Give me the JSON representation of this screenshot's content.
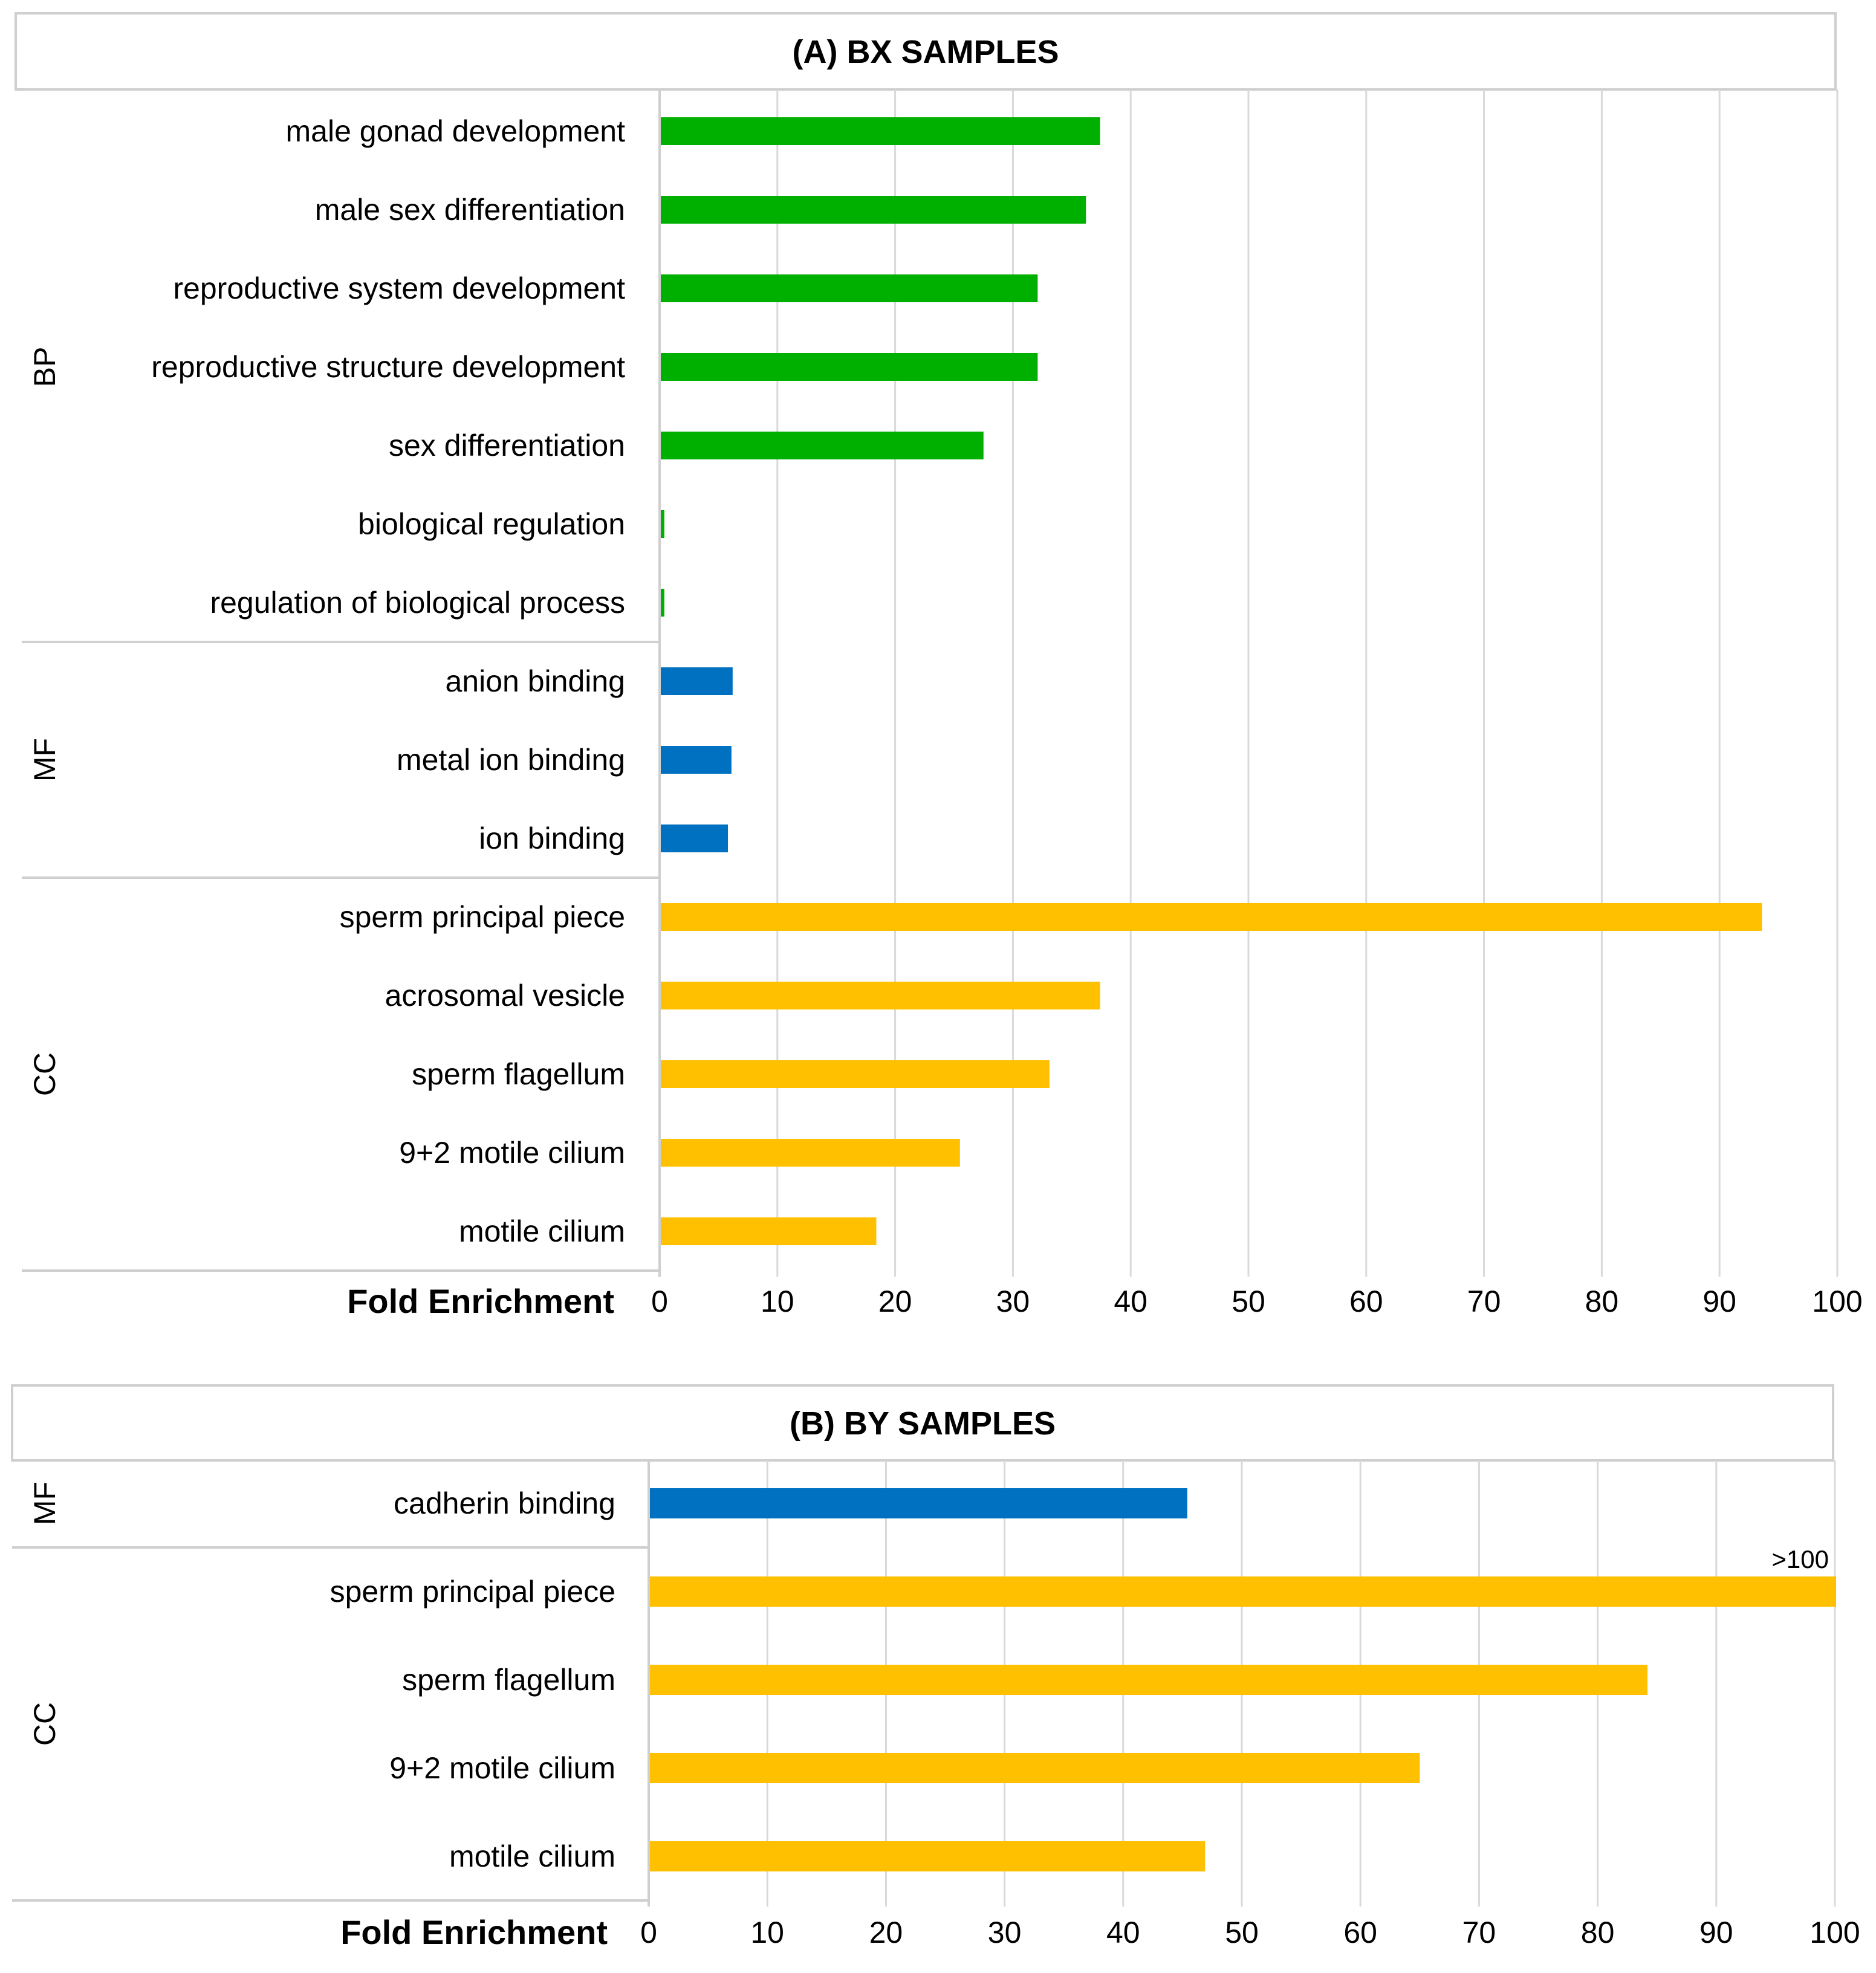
{
  "chart_data": [
    {
      "type": "bar",
      "orientation": "horizontal",
      "title": "(A) BX SAMPLES",
      "xlabel": "Fold Enrichment",
      "xlim": [
        0,
        100
      ],
      "xticks": [
        "0",
        "10",
        "20",
        "30",
        "40",
        "50",
        "60",
        "70",
        "80",
        "90",
        "100"
      ],
      "grid": true,
      "colors": {
        "BP": "#00b000",
        "MF": "#0070c0",
        "CC": "#ffc000"
      },
      "groups": [
        {
          "name": "BP",
          "bars": [
            {
              "label": "male gonad development",
              "value": 37.3
            },
            {
              "label": "male sex differentiation",
              "value": 36.1
            },
            {
              "label": "reproductive system development",
              "value": 32.0
            },
            {
              "label": "reproductive structure development",
              "value": 32.0
            },
            {
              "label": "sex differentiation",
              "value": 27.4
            },
            {
              "label": "biological regulation",
              "value": 0.3
            },
            {
              "label": "regulation of biological process",
              "value": 0.3
            }
          ]
        },
        {
          "name": "MF",
          "bars": [
            {
              "label": "anion binding",
              "value": 6.1
            },
            {
              "label": "metal ion binding",
              "value": 6.0
            },
            {
              "label": "ion binding",
              "value": 5.7
            }
          ]
        },
        {
          "name": "CC",
          "bars": [
            {
              "label": "sperm principal piece",
              "value": 93.5
            },
            {
              "label": "acrosomal vesicle",
              "value": 37.3
            },
            {
              "label": "sperm flagellum",
              "value": 33.0
            },
            {
              "label": "9+2 motile cilium",
              "value": 25.4
            },
            {
              "label": "motile cilium",
              "value": 18.3
            }
          ]
        }
      ]
    },
    {
      "type": "bar",
      "orientation": "horizontal",
      "title": "(B) BY SAMPLES",
      "xlabel": "Fold Enrichment",
      "xlim": [
        0,
        100
      ],
      "xticks": [
        "0",
        "10",
        "20",
        "30",
        "40",
        "50",
        "60",
        "70",
        "80",
        "90",
        "100"
      ],
      "grid": true,
      "colors": {
        "MF": "#0070c0",
        "CC": "#ffc000"
      },
      "groups": [
        {
          "name": "MF",
          "bars": [
            {
              "label": "cadherin binding",
              "value": 45.3
            }
          ]
        },
        {
          "name": "CC",
          "bars": [
            {
              "label": "sperm principal piece",
              "value": 100,
              "annotation": ">100"
            },
            {
              "label": "sperm flagellum",
              "value": 84.1
            },
            {
              "label": "9+2 motile cilium",
              "value": 64.9
            },
            {
              "label": "motile cilium",
              "value": 46.8
            }
          ]
        }
      ]
    }
  ]
}
